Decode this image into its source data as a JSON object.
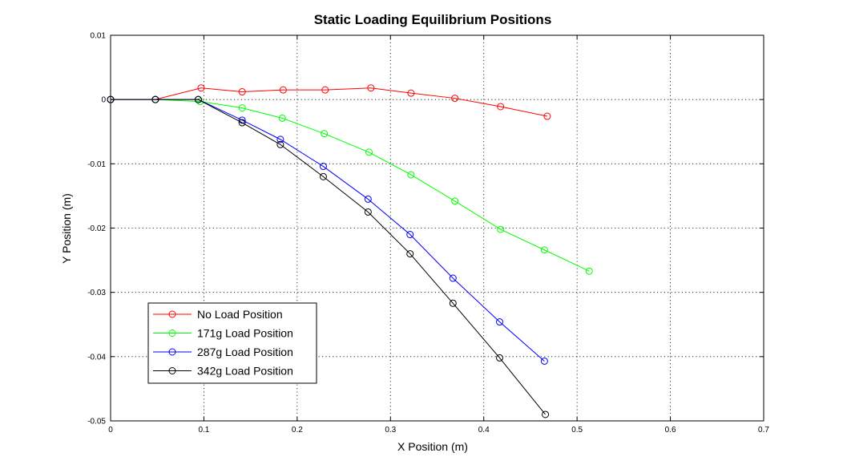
{
  "chart_data": {
    "type": "line",
    "title": "Static Loading Equilibrium Positions",
    "xlabel": "X Position (m)",
    "ylabel": "Y Position (m)",
    "xlim": [
      0,
      0.7
    ],
    "ylim": [
      -0.05,
      0.01
    ],
    "xticks": [
      0,
      0.1,
      0.2,
      0.3,
      0.4,
      0.5,
      0.6,
      0.7
    ],
    "xtick_labels": [
      "0",
      "0.1",
      "0.2",
      "0.3",
      "0.4",
      "0.5",
      "0.6",
      "0.7"
    ],
    "yticks": [
      0.01,
      0,
      -0.01,
      -0.02,
      -0.03,
      -0.04,
      -0.05
    ],
    "ytick_labels": [
      "0.01",
      "0",
      "-0.01",
      "-0.02",
      "-0.03",
      "-0.04",
      "-0.05"
    ],
    "grid": true,
    "marker": "circle",
    "legend_position": "bottom-left",
    "series": [
      {
        "name": "No Load Position",
        "color": "#ff0000",
        "x": [
          0,
          0.048,
          0.097,
          0.141,
          0.185,
          0.23,
          0.279,
          0.322,
          0.369,
          0.418,
          0.468
        ],
        "y": [
          0,
          0,
          0.0018,
          0.0012,
          0.0015,
          0.0015,
          0.0018,
          0.001,
          0.0002,
          -0.0011,
          -0.0026
        ]
      },
      {
        "name": "171g Load Position",
        "color": "#00ff00",
        "x": [
          0,
          0.048,
          0.096,
          0.141,
          0.184,
          0.229,
          0.277,
          0.322,
          0.369,
          0.418,
          0.465,
          0.513
        ],
        "y": [
          0,
          0,
          -0.0003,
          -0.0013,
          -0.0029,
          -0.0053,
          -0.0082,
          -0.0117,
          -0.0158,
          -0.0202,
          -0.0234,
          -0.0267
        ]
      },
      {
        "name": "287g Load Position",
        "color": "#0000ff",
        "x": [
          0,
          0.048,
          0.094,
          0.141,
          0.182,
          0.228,
          0.276,
          0.321,
          0.367,
          0.417,
          0.465
        ],
        "y": [
          0,
          0,
          0,
          -0.0032,
          -0.0062,
          -0.0104,
          -0.0155,
          -0.021,
          -0.0278,
          -0.0346,
          -0.0407
        ]
      },
      {
        "name": "342g Load Position",
        "color": "#000000",
        "x": [
          0,
          0.048,
          0.094,
          0.141,
          0.182,
          0.228,
          0.276,
          0.321,
          0.367,
          0.417,
          0.466
        ],
        "y": [
          0,
          0,
          0,
          -0.0036,
          -0.007,
          -0.012,
          -0.0175,
          -0.024,
          -0.0317,
          -0.0402,
          -0.049
        ]
      }
    ]
  }
}
